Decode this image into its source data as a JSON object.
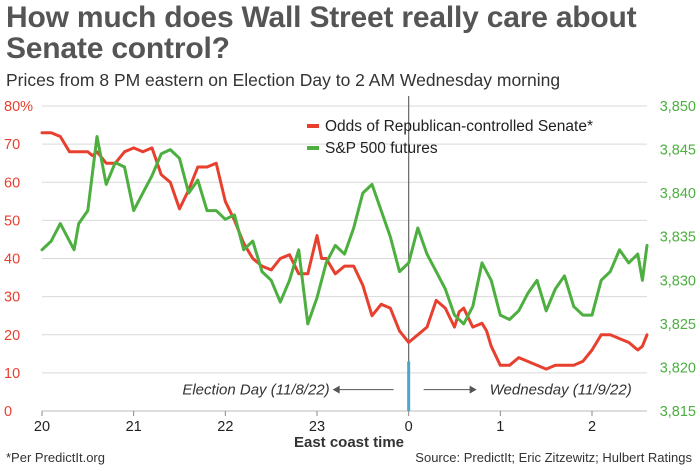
{
  "header": {
    "title": "How much does Wall Street really care about Senate control?",
    "subtitle": "Prices from 8 PM eastern on Election Day to 2 AM Wednesday morning"
  },
  "footer": {
    "left": "*Per PredictIt.org",
    "right": "Source: PredictIt; Eric Zitzewitz; Hulbert Ratings"
  },
  "colors": {
    "odds": "#e8402f",
    "futures": "#4caf3f",
    "left_axis": "#e8402f",
    "right_axis": "#4caf3f",
    "divider": "#666666",
    "marker": "#4aa7c9"
  },
  "chart_data": {
    "type": "line",
    "xlabel": "East coast time",
    "x_ticks": [
      {
        "x": 0,
        "label": "20"
      },
      {
        "x": 1,
        "label": "21"
      },
      {
        "x": 2,
        "label": "22"
      },
      {
        "x": 3,
        "label": "23"
      },
      {
        "x": 4,
        "label": "0"
      },
      {
        "x": 5,
        "label": "1"
      },
      {
        "x": 6,
        "label": "2"
      }
    ],
    "xlim": [
      0,
      6.6
    ],
    "y_left": {
      "ylim": [
        0,
        80
      ],
      "ticks": [
        {
          "v": 0,
          "label": "0"
        },
        {
          "v": 10,
          "label": "10"
        },
        {
          "v": 20,
          "label": "20"
        },
        {
          "v": 30,
          "label": "30"
        },
        {
          "v": 40,
          "label": "40"
        },
        {
          "v": 50,
          "label": "50"
        },
        {
          "v": 60,
          "label": "60"
        },
        {
          "v": 70,
          "label": "70"
        },
        {
          "v": 80,
          "label": "80%"
        }
      ]
    },
    "y_right": {
      "ylim": [
        3815,
        3850
      ],
      "ticks": [
        {
          "v": 3815,
          "label": "3,815"
        },
        {
          "v": 3820,
          "label": "3,820"
        },
        {
          "v": 3825,
          "label": "3,825"
        },
        {
          "v": 3830,
          "label": "3,830"
        },
        {
          "v": 3835,
          "label": "3,835"
        },
        {
          "v": 3840,
          "label": "3,840"
        },
        {
          "v": 3845,
          "label": "3,845"
        },
        {
          "v": 3850,
          "label": "3,850"
        }
      ]
    },
    "grid": "horizontal",
    "legend_position": "top-right",
    "divider_x": 4,
    "divider_label_left": "Election Day (11/8/22)",
    "divider_label_right": "Wednesday (11/9/22)",
    "series": [
      {
        "name": "Odds of Republican-controlled Senate*",
        "axis": "left",
        "x": [
          0,
          0.1,
          0.2,
          0.3,
          0.4,
          0.5,
          0.55,
          0.6,
          0.7,
          0.8,
          0.9,
          1.0,
          1.1,
          1.2,
          1.3,
          1.4,
          1.5,
          1.6,
          1.7,
          1.8,
          1.9,
          2.0,
          2.1,
          2.2,
          2.3,
          2.4,
          2.5,
          2.6,
          2.7,
          2.8,
          2.9,
          3.0,
          3.05,
          3.1,
          3.2,
          3.3,
          3.4,
          3.5,
          3.6,
          3.7,
          3.8,
          3.9,
          4.0,
          4.1,
          4.2,
          4.3,
          4.4,
          4.5,
          4.55,
          4.6,
          4.7,
          4.8,
          4.85,
          4.9,
          5.0,
          5.1,
          5.2,
          5.3,
          5.4,
          5.5,
          5.6,
          5.7,
          5.8,
          5.9,
          6.0,
          6.1,
          6.2,
          6.3,
          6.4,
          6.5,
          6.55,
          6.6
        ],
        "y": [
          73,
          73,
          72,
          68,
          68,
          68,
          67,
          68,
          65,
          65,
          68,
          69,
          68,
          69,
          62,
          60,
          53,
          58,
          64,
          64,
          65,
          55,
          50,
          44,
          40,
          38,
          37,
          40,
          41,
          36,
          36,
          46,
          40,
          40,
          36,
          38,
          38,
          33,
          25,
          28,
          27,
          21,
          18,
          20,
          22,
          29,
          27,
          22,
          26,
          27,
          22,
          23,
          21,
          17,
          12,
          12,
          14,
          13,
          12,
          11,
          12,
          12,
          12,
          13,
          16,
          20,
          20,
          19,
          18,
          16,
          17,
          20
        ]
      },
      {
        "name": "S&P 500 futures",
        "axis": "right",
        "x": [
          0,
          0.1,
          0.2,
          0.3,
          0.35,
          0.4,
          0.5,
          0.6,
          0.7,
          0.8,
          0.9,
          1.0,
          1.1,
          1.2,
          1.3,
          1.4,
          1.5,
          1.6,
          1.7,
          1.8,
          1.9,
          2.0,
          2.1,
          2.2,
          2.3,
          2.4,
          2.5,
          2.6,
          2.7,
          2.8,
          2.9,
          3.0,
          3.1,
          3.2,
          3.3,
          3.4,
          3.5,
          3.6,
          3.7,
          3.8,
          3.9,
          4.0,
          4.1,
          4.2,
          4.3,
          4.4,
          4.5,
          4.6,
          4.7,
          4.8,
          4.9,
          5.0,
          5.1,
          5.2,
          5.3,
          5.4,
          5.5,
          5.6,
          5.7,
          5.8,
          5.9,
          6.0,
          6.1,
          6.2,
          6.3,
          6.4,
          6.5,
          6.55,
          6.6
        ],
        "y": [
          3833.5,
          3834.5,
          3836.5,
          3834.5,
          3833.5,
          3836.5,
          3838,
          3846.5,
          3841,
          3843.5,
          3843,
          3838,
          3840,
          3842,
          3844.5,
          3845,
          3844,
          3840,
          3841.5,
          3838,
          3838,
          3837,
          3837.5,
          3833.5,
          3834.5,
          3831,
          3830,
          3827.5,
          3830,
          3833.5,
          3825,
          3828,
          3832,
          3834,
          3833,
          3836,
          3840,
          3841,
          3838,
          3835,
          3831,
          3832,
          3836,
          3833,
          3831,
          3829,
          3826,
          3825,
          3827,
          3832,
          3830,
          3826,
          3825.5,
          3826.5,
          3828.5,
          3830,
          3826.5,
          3829,
          3830.5,
          3827,
          3826,
          3826,
          3830,
          3831,
          3833.5,
          3832,
          3833,
          3830,
          3834
        ]
      }
    ]
  }
}
